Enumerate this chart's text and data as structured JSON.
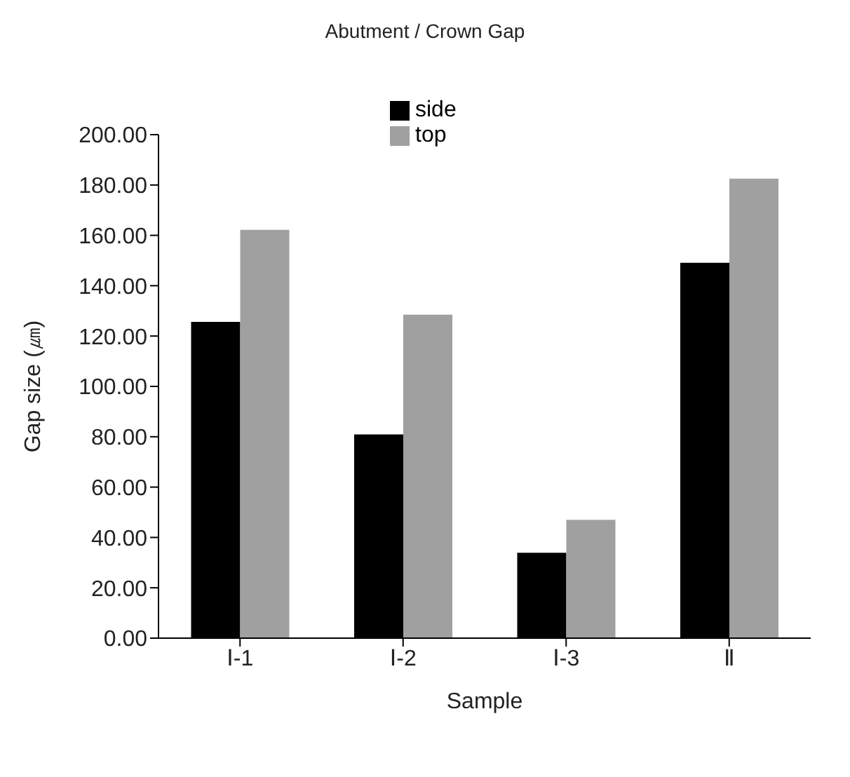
{
  "chart_data": {
    "type": "bar",
    "title": "Abutment / Crown Gap",
    "xlabel": "Sample",
    "ylabel": "Gap size (㎛)",
    "categories": [
      "Ⅰ-1",
      "Ⅰ-2",
      "Ⅰ-3",
      "Ⅱ"
    ],
    "series": [
      {
        "name": "side",
        "color": "#000000",
        "values": [
          125.6,
          80.9,
          33.9,
          149.1
        ]
      },
      {
        "name": "top",
        "color": "#a0a0a0",
        "values": [
          162.2,
          128.5,
          47.0,
          182.5
        ]
      }
    ],
    "ylim": [
      0,
      200
    ],
    "yticks": [
      {
        "value": 0,
        "label": "0.00"
      },
      {
        "value": 20,
        "label": "20.00"
      },
      {
        "value": 40,
        "label": "40.00"
      },
      {
        "value": 60,
        "label": "60.00"
      },
      {
        "value": 80,
        "label": "80.00"
      },
      {
        "value": 100,
        "label": "100.00"
      },
      {
        "value": 120,
        "label": "120.00"
      },
      {
        "value": 140,
        "label": "140.00"
      },
      {
        "value": 160,
        "label": "160.00"
      },
      {
        "value": 180,
        "label": "180.00"
      },
      {
        "value": 200,
        "label": "200.00"
      }
    ],
    "grid": false,
    "legend": "top"
  }
}
